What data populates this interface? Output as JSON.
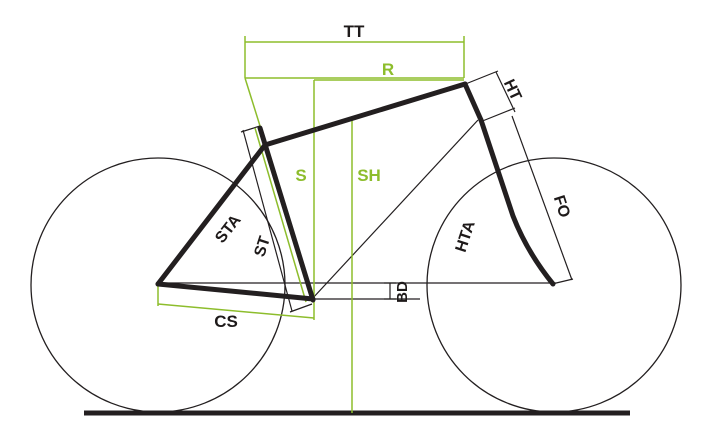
{
  "diagram": {
    "colors": {
      "frame": "#231f20",
      "green": "#8dbd2c",
      "guide": "#231f20",
      "ground": "#231f20"
    },
    "labels": {
      "tt": "TT",
      "r": "R",
      "ht": "HT",
      "s": "S",
      "sh": "SH",
      "sta": "STA",
      "st": "ST",
      "hta": "HTA",
      "fo": "FO",
      "bd": "BD",
      "cs": "CS"
    }
  }
}
